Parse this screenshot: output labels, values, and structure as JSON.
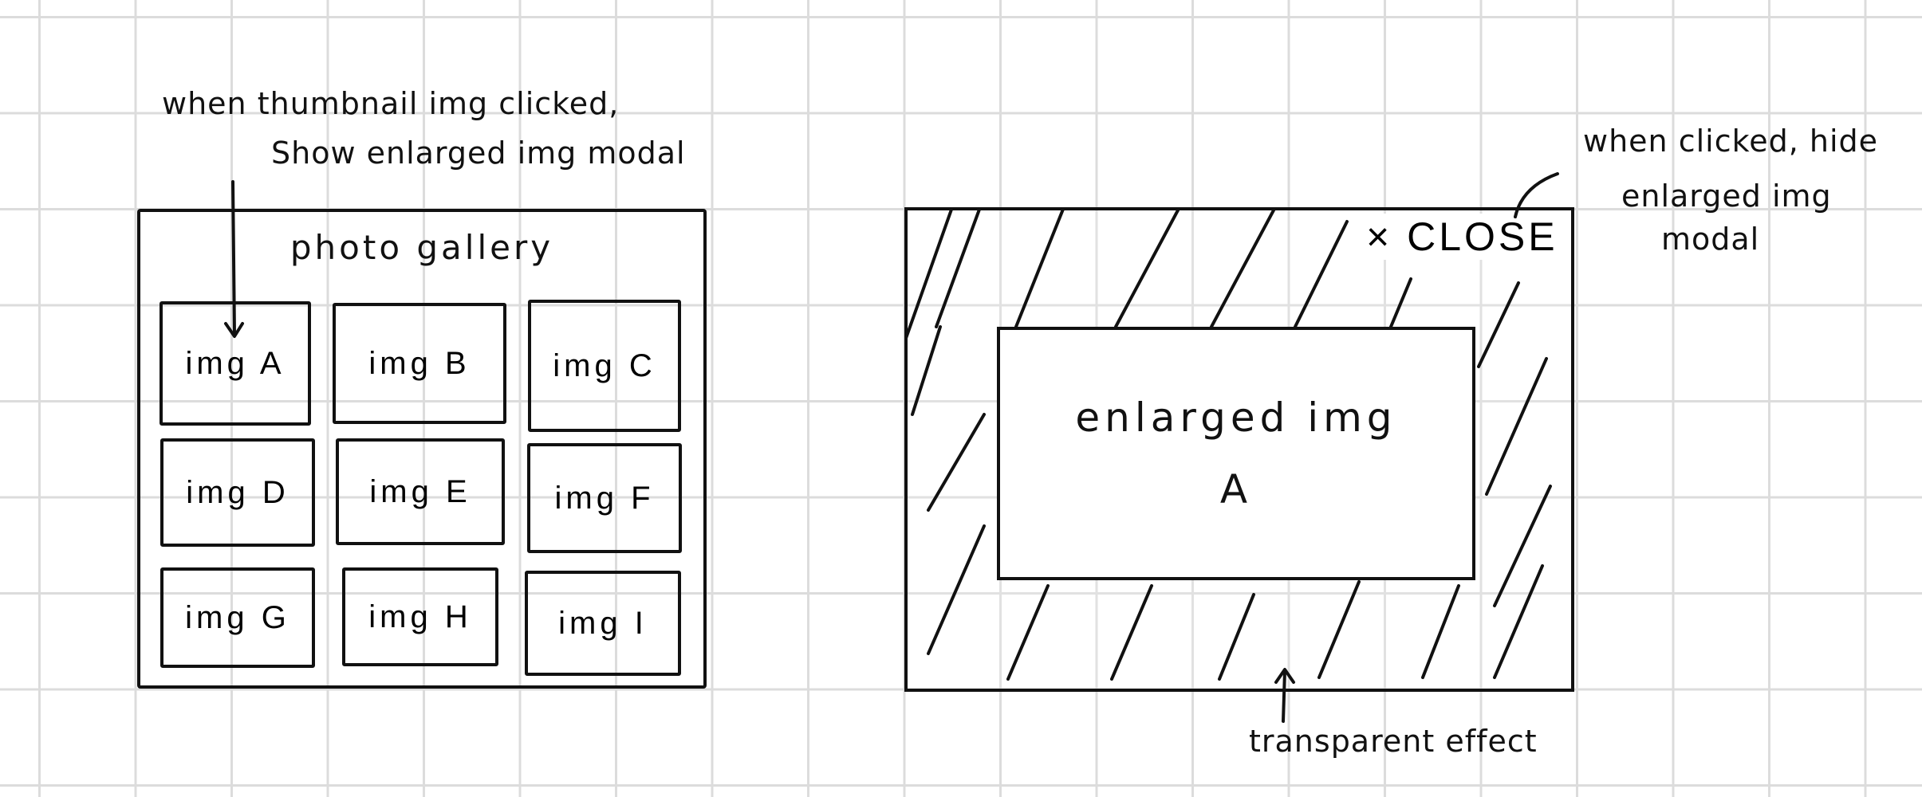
{
  "annotations": {
    "thumbnail_click_line1": "when thumbnail img clicked,",
    "thumbnail_click_line2": "Show enlarged img modal",
    "close_click_line1": "when clicked, hide",
    "close_click_line2": "enlarged img",
    "close_click_line3": "modal",
    "transparent_effect": "transparent effect"
  },
  "gallery": {
    "title": "photo gallery",
    "thumbnails": [
      "img A",
      "img B",
      "img C",
      "img D",
      "img E",
      "img F",
      "img G",
      "img H",
      "img I"
    ]
  },
  "modal": {
    "close_icon": "×",
    "close_label": "CLOSE",
    "enlarged_line1": "enlarged img",
    "enlarged_line2": "A"
  },
  "colors": {
    "ink": "#111111",
    "grid": "#dcdcdc",
    "paper": "#ffffff"
  }
}
